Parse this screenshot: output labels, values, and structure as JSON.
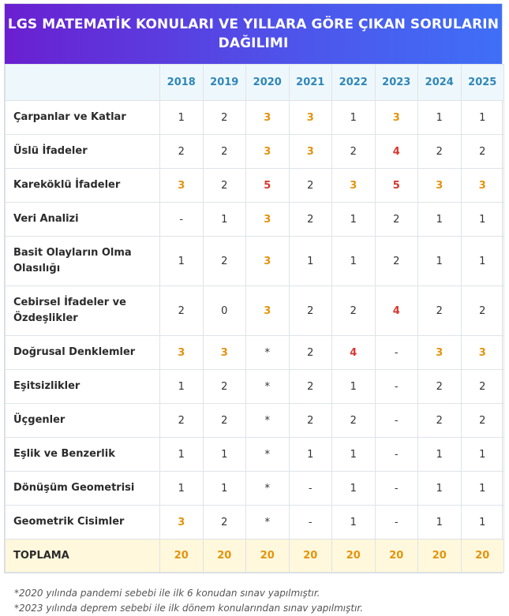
{
  "title_line1": "LGS MATEMATİK KONULARI VE YILLARA GÖRE ÇIKAN SORULARIN",
  "title_line2": "DAĞILIMI",
  "years": [
    "2018",
    "2019",
    "2020",
    "2021",
    "2022",
    "2023",
    "2024",
    "2025"
  ],
  "rows": [
    {
      "topic": "Çarpanlar ve Katlar",
      "values": [
        "1",
        "2",
        "3",
        "3",
        "1",
        "3",
        "1",
        "1"
      ]
    },
    {
      "topic": "Üslü İfadeler",
      "values": [
        "2",
        "2",
        "3",
        "3",
        "2",
        "4",
        "2",
        "2"
      ]
    },
    {
      "topic": "Kareköklü İfadeler",
      "values": [
        "3",
        "2",
        "5",
        "2",
        "3",
        "5",
        "3",
        "3"
      ]
    },
    {
      "topic": "Veri Analizi",
      "values": [
        "-",
        "1",
        "3",
        "2",
        "1",
        "2",
        "1",
        "1"
      ]
    },
    {
      "topic": "Basit Olayların Olma Olasılığı",
      "values": [
        "1",
        "2",
        "3",
        "1",
        "1",
        "2",
        "1",
        "1"
      ]
    },
    {
      "topic": "Cebirsel İfadeler ve Özdeşlikler",
      "values": [
        "2",
        "0",
        "3",
        "2",
        "2",
        "4",
        "2",
        "2"
      ]
    },
    {
      "topic": "Doğrusal Denklemler",
      "values": [
        "3",
        "3",
        "*",
        "2",
        "4",
        "-",
        "3",
        "3"
      ]
    },
    {
      "topic": "Eşitsizlikler",
      "values": [
        "1",
        "2",
        "*",
        "2",
        "1",
        "-",
        "2",
        "2"
      ]
    },
    {
      "topic": "Üçgenler",
      "values": [
        "2",
        "2",
        "*",
        "2",
        "2",
        "-",
        "2",
        "2"
      ]
    },
    {
      "topic": "Eşlik ve Benzerlik",
      "values": [
        "1",
        "1",
        "*",
        "1",
        "1",
        "-",
        "1",
        "1"
      ]
    },
    {
      "topic": "Dönüşüm Geometrisi",
      "values": [
        "1",
        "1",
        "*",
        "-",
        "1",
        "-",
        "1",
        "1"
      ]
    },
    {
      "topic": "Geometrik Cisimler",
      "values": [
        "3",
        "2",
        "*",
        "-",
        "1",
        "-",
        "1",
        "1"
      ]
    }
  ],
  "total": {
    "label": "TOPLAMA",
    "values": [
      "20",
      "20",
      "20",
      "20",
      "20",
      "20",
      "20",
      "20"
    ]
  },
  "notes": [
    "*2020 yılında pandemi sebebi ile ilk 6 konudan sınav yapılmıştır.",
    "*2023 yılında deprem sebebi ile ilk dönem konularından sınav yapılmıştır."
  ],
  "colors": {
    "banner_start": "#6a1fd0",
    "banner_end": "#3f6ff6",
    "header_text": "#2f86b8",
    "value_3": "#e5930e",
    "value_4_5": "#d8372d",
    "total_bg": "#fff8dc"
  }
}
